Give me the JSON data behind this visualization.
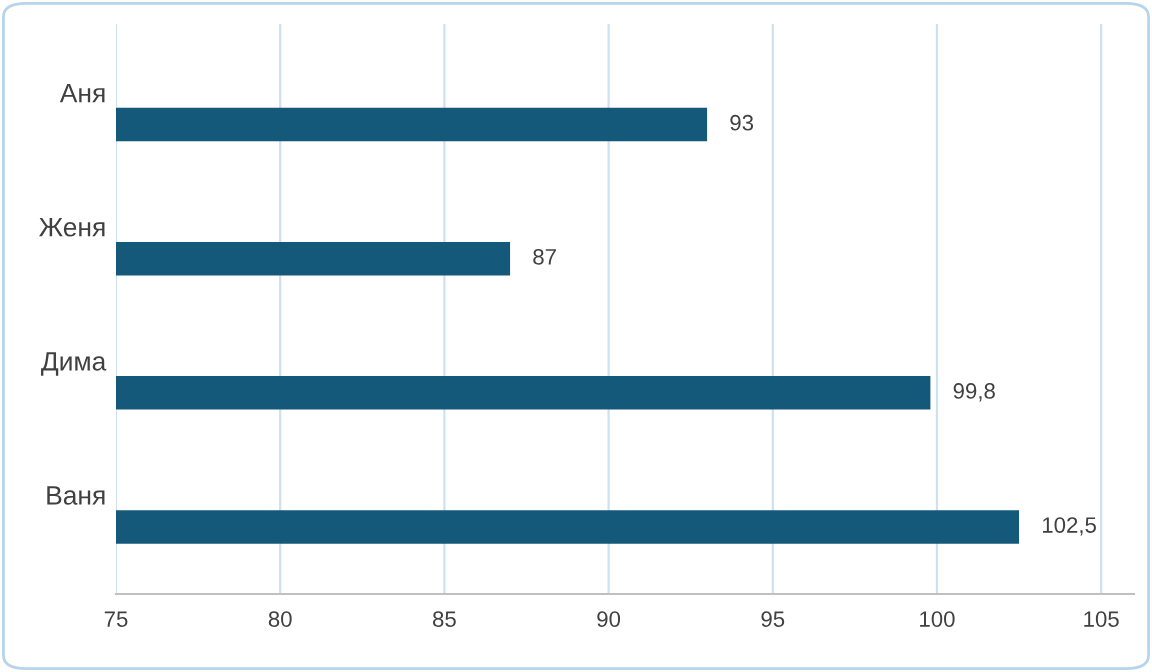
{
  "chart_data": {
    "type": "bar",
    "orientation": "horizontal",
    "categories": [
      "Аня",
      "Женя",
      "Дима",
      "Ваня"
    ],
    "values": [
      93,
      87,
      99.8,
      102.5
    ],
    "color": "#15597a",
    "value_labels": [
      "93",
      "87",
      "99,8",
      "102,5"
    ],
    "xlim": [
      75,
      106
    ],
    "xticks": [
      75,
      80,
      85,
      90,
      95,
      100,
      105
    ],
    "grid": "x"
  }
}
